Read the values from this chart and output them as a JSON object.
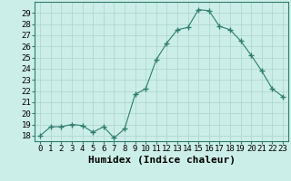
{
  "title": "",
  "xlabel": "Humidex (Indice chaleur)",
  "x": [
    0,
    1,
    2,
    3,
    4,
    5,
    6,
    7,
    8,
    9,
    10,
    11,
    12,
    13,
    14,
    15,
    16,
    17,
    18,
    19,
    20,
    21,
    22,
    23
  ],
  "y": [
    18.0,
    18.8,
    18.8,
    19.0,
    18.9,
    18.3,
    18.8,
    17.8,
    18.6,
    21.7,
    22.2,
    24.8,
    26.3,
    27.5,
    27.7,
    29.3,
    29.2,
    27.8,
    27.5,
    26.5,
    25.2,
    23.8,
    22.2,
    21.5
  ],
  "line_color": "#2e7d6e",
  "marker": "+",
  "marker_size": 4,
  "bg_color": "#cceee8",
  "grid_color": "#aad4cc",
  "ylim": [
    17.5,
    30.0
  ],
  "yticks": [
    18,
    19,
    20,
    21,
    22,
    23,
    24,
    25,
    26,
    27,
    28,
    29
  ],
  "xlim": [
    -0.5,
    23.5
  ],
  "xticks": [
    0,
    1,
    2,
    3,
    4,
    5,
    6,
    7,
    8,
    9,
    10,
    11,
    12,
    13,
    14,
    15,
    16,
    17,
    18,
    19,
    20,
    21,
    22,
    23
  ],
  "tick_fontsize": 6.5,
  "xlabel_fontsize": 8.0
}
